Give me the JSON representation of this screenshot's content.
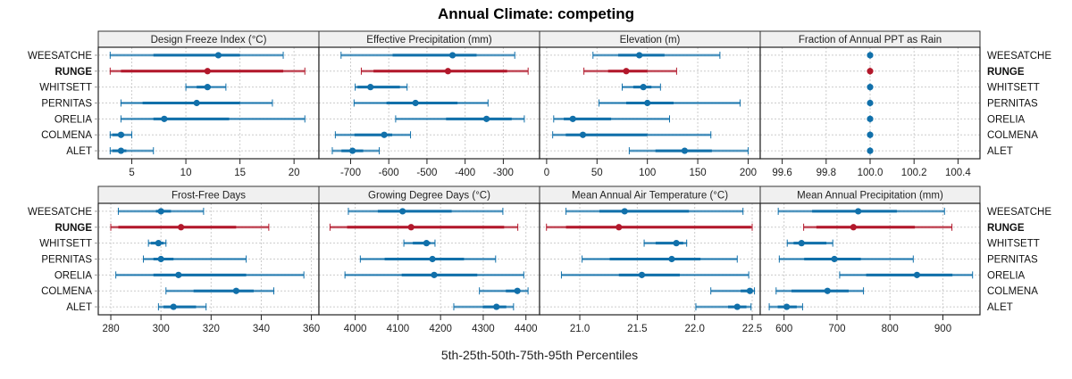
{
  "chart_data": {
    "type": "dot-interval",
    "title": "Annual Climate: competing",
    "xlabel": "5th-25th-50th-75th-95th Percentiles",
    "legend": "none",
    "grid": true,
    "colors": {
      "default": "#1170aa",
      "highlight": "#b2182b"
    },
    "rows": [
      "WEESATCHE",
      "RUNGE",
      "WHITSETT",
      "PERNITAS",
      "ORELIA",
      "COLMENA",
      "ALET"
    ],
    "highlight_row": "RUNGE",
    "percentiles": [
      "p05",
      "p25",
      "p50",
      "p75",
      "p95"
    ],
    "panels": [
      {
        "title": "Design Freeze Index (°C)",
        "xlim": [
          1.9,
          22.3
        ],
        "ticks": [
          5,
          10,
          15,
          20
        ],
        "values": {
          "WEESATCHE": [
            3,
            7,
            13,
            15,
            19
          ],
          "RUNGE": [
            3,
            4,
            12,
            19,
            21
          ],
          "WHITSETT": [
            10,
            11,
            12,
            12.3,
            13.7
          ],
          "PERNITAS": [
            4,
            6,
            11,
            15,
            18
          ],
          "ORELIA": [
            4,
            7,
            8,
            14,
            21
          ],
          "COLMENA": [
            3,
            3.2,
            4,
            4.3,
            5
          ],
          "ALET": [
            3,
            3.2,
            4,
            4.5,
            7
          ]
        }
      },
      {
        "title": "Effective Precipitation (mm)",
        "xlim": [
          -783,
          -205
        ],
        "ticks": [
          -700,
          -600,
          -500,
          -400,
          -300
        ],
        "values": {
          "WEESATCHE": [
            -725,
            -590,
            -433,
            -370,
            -270
          ],
          "RUNGE": [
            -672,
            -640,
            -445,
            -290,
            -235
          ],
          "WHITSETT": [
            -688,
            -682,
            -648,
            -571,
            -552
          ],
          "PERNITAS": [
            -691,
            -606,
            -530,
            -420,
            -340
          ],
          "ORELIA": [
            -582,
            -450,
            -344,
            -278,
            -245
          ],
          "COLMENA": [
            -740,
            -690,
            -612,
            -591,
            -543
          ],
          "ALET": [
            -748,
            -724,
            -695,
            -667,
            -625
          ]
        }
      },
      {
        "title": "Elevation (m)",
        "xlim": [
          -7,
          212
        ],
        "ticks": [
          0,
          50,
          100,
          150,
          200
        ],
        "values": {
          "WEESATCHE": [
            46,
            71,
            92,
            117,
            172
          ],
          "RUNGE": [
            37,
            61,
            79,
            100,
            129
          ],
          "WHITSETT": [
            75,
            86,
            96,
            104,
            113
          ],
          "PERNITAS": [
            52,
            79,
            100,
            126,
            192
          ],
          "ORELIA": [
            7,
            17,
            26,
            64,
            122
          ],
          "COLMENA": [
            6,
            19,
            36,
            100,
            163
          ],
          "ALET": [
            82,
            108,
            137,
            164,
            200
          ]
        }
      },
      {
        "title": "Fraction of Annual PPT as Rain",
        "xlim": [
          99.5,
          100.5
        ],
        "ticks_labels": [
          "99.6",
          "99.8",
          "100.0",
          "100.2",
          "100.4"
        ],
        "ticks": [
          99.6,
          99.8,
          100.0,
          100.2,
          100.4
        ],
        "values": {
          "WEESATCHE": [
            100,
            100,
            100,
            100,
            100
          ],
          "RUNGE": [
            100,
            100,
            100,
            100,
            100
          ],
          "WHITSETT": [
            100,
            100,
            100,
            100,
            100
          ],
          "PERNITAS": [
            100,
            100,
            100,
            100,
            100
          ],
          "ORELIA": [
            100,
            100,
            100,
            100,
            100
          ],
          "COLMENA": [
            100,
            100,
            100,
            100,
            100
          ],
          "ALET": [
            100,
            100,
            100,
            100,
            100
          ]
        }
      },
      {
        "title": "Frost-Free Days",
        "xlim": [
          275,
          363
        ],
        "ticks": [
          280,
          300,
          320,
          340,
          360
        ],
        "values": {
          "WEESATCHE": [
            283,
            298,
            300,
            304,
            317
          ],
          "RUNGE": [
            280,
            283,
            308,
            330,
            343
          ],
          "WHITSETT": [
            295,
            296,
            299,
            301,
            302
          ],
          "PERNITAS": [
            293,
            297,
            300,
            305,
            334
          ],
          "ORELIA": [
            282,
            297,
            307,
            334,
            357
          ],
          "COLMENA": [
            302,
            313,
            330,
            337,
            345
          ],
          "ALET": [
            299,
            301,
            305,
            314,
            318
          ]
        }
      },
      {
        "title": "Growing Degree Days (°C)",
        "xlim": [
          3915,
          4432
        ],
        "ticks": [
          4000,
          4100,
          4200,
          4300,
          4400
        ],
        "values": {
          "WEESATCHE": [
            3984,
            4053,
            4111,
            4226,
            4346
          ],
          "RUNGE": [
            3941,
            3981,
            4131,
            4349,
            4381
          ],
          "WHITSETT": [
            4114,
            4135,
            4167,
            4176,
            4187
          ],
          "PERNITAS": [
            4012,
            4069,
            4181,
            4255,
            4329
          ],
          "ORELIA": [
            3976,
            4109,
            4185,
            4286,
            4395
          ],
          "COLMENA": [
            4291,
            4353,
            4380,
            4386,
            4405
          ],
          "ALET": [
            4231,
            4299,
            4331,
            4354,
            4371
          ]
        }
      },
      {
        "title": "Mean Annual Air Temperature (°C)",
        "xlim": [
          20.65,
          22.57
        ],
        "ticks_labels": [
          "21.0",
          "21.5",
          "22.0",
          "22.5"
        ],
        "ticks": [
          21.0,
          21.5,
          22.0,
          22.5
        ],
        "values": {
          "WEESATCHE": [
            20.88,
            21.17,
            21.39,
            21.95,
            22.42
          ],
          "RUNGE": [
            20.71,
            20.88,
            21.34,
            22.49,
            22.5
          ],
          "WHITSETT": [
            21.56,
            21.66,
            21.84,
            21.9,
            21.93
          ],
          "PERNITAS": [
            21.02,
            21.26,
            21.8,
            22.05,
            22.37
          ],
          "ORELIA": [
            20.84,
            21.34,
            21.54,
            21.87,
            22.47
          ],
          "COLMENA": [
            22.14,
            22.4,
            22.48,
            22.5,
            22.52
          ],
          "ALET": [
            22.01,
            22.29,
            22.37,
            22.45,
            22.49
          ]
        }
      },
      {
        "title": "Mean Annual Precipitation (mm)",
        "xlim": [
          555,
          970
        ],
        "ticks": [
          600,
          700,
          800,
          900
        ],
        "values": {
          "WEESATCHE": [
            589,
            653,
            740,
            813,
            903
          ],
          "RUNGE": [
            637,
            661,
            731,
            847,
            917
          ],
          "WHITSETT": [
            606,
            618,
            633,
            680,
            692
          ],
          "PERNITAS": [
            591,
            638,
            695,
            745,
            844
          ],
          "ORELIA": [
            705,
            755,
            851,
            918,
            956
          ],
          "COLMENA": [
            585,
            614,
            682,
            722,
            750
          ],
          "ALET": [
            572,
            588,
            605,
            624,
            635
          ]
        }
      }
    ]
  }
}
